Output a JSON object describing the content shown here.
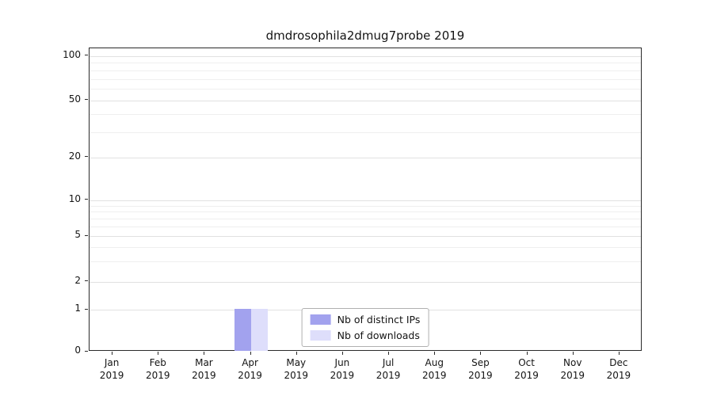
{
  "chart_data": {
    "type": "bar",
    "title": "dmdrosophila2dmug7probe 2019",
    "categories": [
      "Jan",
      "Feb",
      "Mar",
      "Apr",
      "May",
      "Jun",
      "Jul",
      "Aug",
      "Sep",
      "Oct",
      "Nov",
      "Dec"
    ],
    "year": "2019",
    "series": [
      {
        "name": "Nb of distinct IPs",
        "color": "#a2a2ee",
        "values": [
          0,
          0,
          0,
          1,
          0,
          0,
          0,
          0,
          0,
          0,
          0,
          0
        ]
      },
      {
        "name": "Nb of downloads",
        "color": "#dedefb",
        "values": [
          0,
          0,
          0,
          1,
          0,
          0,
          0,
          0,
          0,
          0,
          0,
          0
        ]
      }
    ],
    "yticks": [
      0,
      1,
      2,
      5,
      10,
      20,
      50,
      100
    ],
    "yscale": "symlog",
    "ylim": [
      0,
      110
    ],
    "grid": true,
    "legend_position": "bottom-center"
  }
}
